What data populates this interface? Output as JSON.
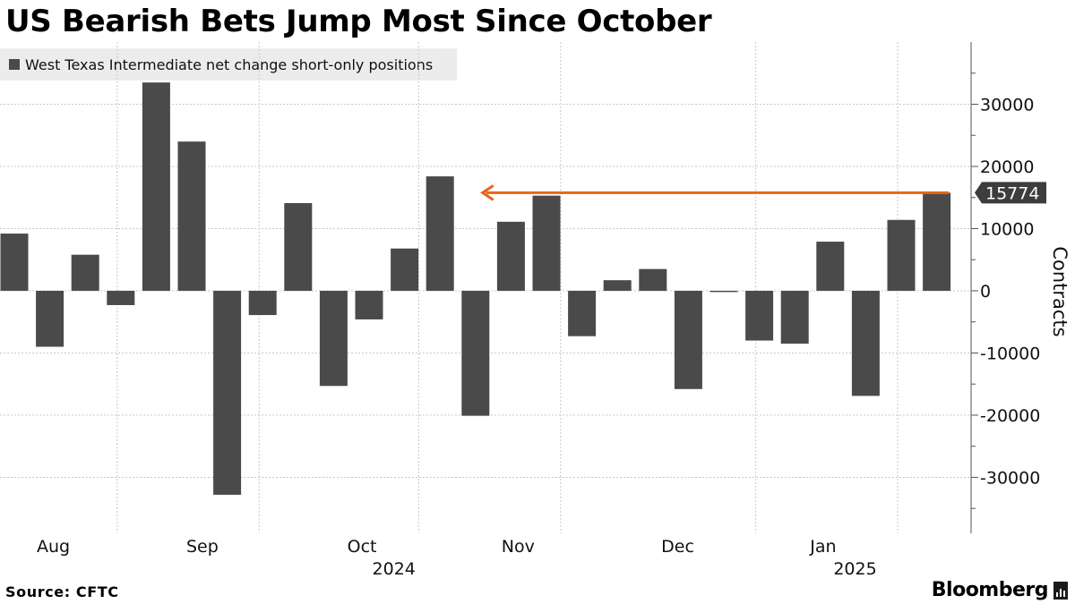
{
  "title": "US Bearish Bets Jump Most Since October",
  "source": "Source: CFTC",
  "brand": "Bloomberg",
  "colors": {
    "bar": "#4a4a4a",
    "accent": "#e8651a",
    "grid": "#c8c8c8",
    "label_bg": "#3d3d3d"
  },
  "chart_data": {
    "type": "bar",
    "legend": [
      "West Texas Intermediate net change short-only positions"
    ],
    "series": [
      {
        "name": "West Texas Intermediate net change short-only positions",
        "values": [
          9200,
          -9000,
          5800,
          -2300,
          33500,
          24000,
          -32800,
          -3900,
          14100,
          -15300,
          -4600,
          6800,
          18400,
          -20100,
          11100,
          15300,
          -7300,
          1700,
          3500,
          -15800,
          -200,
          -8000,
          -8500,
          7900,
          -16900,
          11400,
          15774
        ]
      }
    ],
    "ylabel": "Contracts",
    "ylim": [
      -39000,
      40000
    ],
    "yticks": [
      {
        "value": 30000,
        "label": "30000"
      },
      {
        "value": 20000,
        "label": "20000"
      },
      {
        "value": 10000,
        "label": "10000"
      },
      {
        "value": 0,
        "label": "0"
      },
      {
        "value": -10000,
        "label": "-10000"
      },
      {
        "value": -20000,
        "label": "-20000"
      },
      {
        "value": -30000,
        "label": "-30000"
      }
    ],
    "month_labels": [
      {
        "label": "Aug",
        "index": 1.1
      },
      {
        "label": "Sep",
        "index": 5.3
      },
      {
        "label": "Oct",
        "index": 9.8
      },
      {
        "label": "Nov",
        "index": 14.2
      },
      {
        "label": "Dec",
        "index": 18.7
      },
      {
        "label": "Jan",
        "index": 22.8
      }
    ],
    "year_labels": [
      {
        "label": "2024",
        "index": 10.7
      },
      {
        "label": "2025",
        "index": 23.7
      }
    ],
    "vgrid_indices": [
      2.9,
      6.9,
      11.4,
      15.4,
      20.9,
      24.9
    ],
    "last_value_label": "15774",
    "annotation": {
      "type": "arrow",
      "from_index": 26,
      "to_index": 13.2,
      "value": 15774
    }
  }
}
